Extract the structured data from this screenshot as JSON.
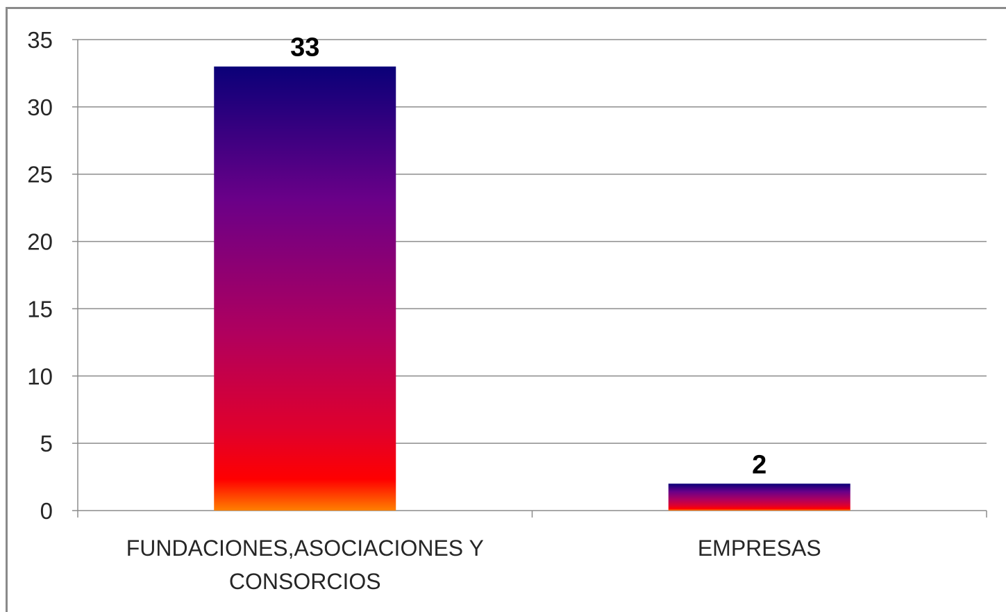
{
  "chart_data": {
    "type": "bar",
    "categories": [
      [
        "FUNDACIONES,ASOCIACIONES Y",
        "CONSORCIOS"
      ],
      [
        "EMPRESAS"
      ]
    ],
    "values": [
      33,
      2
    ],
    "data_labels": [
      "33",
      "2"
    ],
    "title": "",
    "xlabel": "",
    "ylabel": "",
    "ylim": [
      0,
      35
    ],
    "yticks": [
      0,
      5,
      10,
      15,
      20,
      25,
      30,
      35
    ],
    "grid": true,
    "legend": "none",
    "bar_gradient": [
      "#0a0078",
      "#6a0088",
      "#b0005e",
      "#e0002c",
      "#ff0000",
      "#ff8000"
    ]
  }
}
